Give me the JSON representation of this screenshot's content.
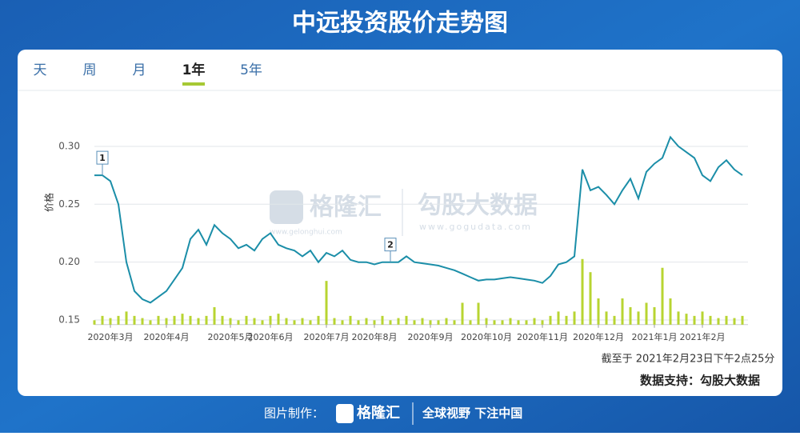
{
  "chart_data": {
    "type": "line",
    "title": "中远投资股价走势图",
    "tabs": [
      "天",
      "周",
      "月",
      "1年",
      "5年"
    ],
    "active_tab": 3,
    "y_label": "价格",
    "color": "#1b8ea8",
    "volume_color": "#b8d432",
    "xlim": [
      0,
      81
    ],
    "xticks": [
      {
        "value": 2,
        "label": "2020年3月"
      },
      {
        "value": 9,
        "label": "2020年4月"
      },
      {
        "value": 17,
        "label": "2020年5月"
      },
      {
        "value": 22,
        "label": "2020年6月"
      },
      {
        "value": 29,
        "label": "2020年7月"
      },
      {
        "value": 35,
        "label": "2020年8月"
      },
      {
        "value": 42,
        "label": "2020年9月"
      },
      {
        "value": 49,
        "label": "2020年10月"
      },
      {
        "value": 56,
        "label": "2020年11月"
      },
      {
        "value": 63,
        "label": "2020年12月"
      },
      {
        "value": 70,
        "label": "2021年1月"
      },
      {
        "value": 76,
        "label": "2021年2月"
      }
    ],
    "ylim": [
      0.146,
      0.32
    ],
    "yticks": [
      {
        "value": 0.15,
        "label": "0.15"
      },
      {
        "value": 0.2,
        "label": "0.20"
      },
      {
        "value": 0.25,
        "label": "0.25"
      },
      {
        "value": 0.3,
        "label": "0.30"
      }
    ],
    "grid": true,
    "values": [
      0.275,
      0.275,
      0.27,
      0.25,
      0.2,
      0.175,
      0.168,
      0.165,
      0.17,
      0.175,
      0.185,
      0.195,
      0.22,
      0.228,
      0.215,
      0.232,
      0.225,
      0.22,
      0.212,
      0.215,
      0.21,
      0.22,
      0.225,
      0.215,
      0.212,
      0.21,
      0.205,
      0.21,
      0.2,
      0.208,
      0.205,
      0.21,
      0.202,
      0.2,
      0.2,
      0.198,
      0.2,
      0.2,
      0.2,
      0.205,
      0.2,
      0.199,
      0.198,
      0.197,
      0.195,
      0.193,
      0.19,
      0.187,
      0.184,
      0.185,
      0.185,
      0.186,
      0.187,
      0.186,
      0.185,
      0.184,
      0.182,
      0.188,
      0.198,
      0.2,
      0.205,
      0.28,
      0.262,
      0.265,
      0.258,
      0.25,
      0.262,
      0.272,
      0.255,
      0.278,
      0.285,
      0.29,
      0.308,
      0.3,
      0.295,
      0.29,
      0.275,
      0.27,
      0.282,
      0.288,
      0.28,
      0.275
    ],
    "volume": [
      1,
      2,
      1.5,
      2,
      3,
      2,
      1.5,
      1,
      2,
      1.5,
      2,
      2.5,
      2,
      1.5,
      2,
      4,
      2,
      1.5,
      1,
      2,
      1.5,
      1,
      2,
      2.5,
      1.5,
      1,
      1.5,
      1,
      2,
      10,
      1.5,
      1,
      2,
      1,
      1.5,
      1,
      2,
      1,
      1.5,
      2,
      1,
      1.5,
      1,
      1,
      1.5,
      1,
      5,
      1,
      5,
      1.5,
      1,
      1,
      1.5,
      1,
      1,
      1.5,
      1,
      2,
      3,
      2,
      3,
      15,
      12,
      6,
      3,
      2,
      6,
      4,
      3,
      5,
      4,
      13,
      6,
      3,
      2.5,
      2,
      3,
      2,
      1.5,
      2,
      1.5,
      2
    ],
    "annotations": [
      {
        "label": "1",
        "x": 1
      },
      {
        "label": "2",
        "x": 37
      }
    ],
    "watermark": [
      "格隆汇",
      "www.gelonghui.com",
      "勾股大数据",
      "www.gogudata.com"
    ],
    "timestamp": "截至于 2021年2月23日下午2点25分",
    "source": "数据支持：勾股大数据",
    "footer": {
      "made_by": "图片制作：",
      "brand": "格隆汇",
      "slogan": "全球视野 下注中国"
    }
  }
}
